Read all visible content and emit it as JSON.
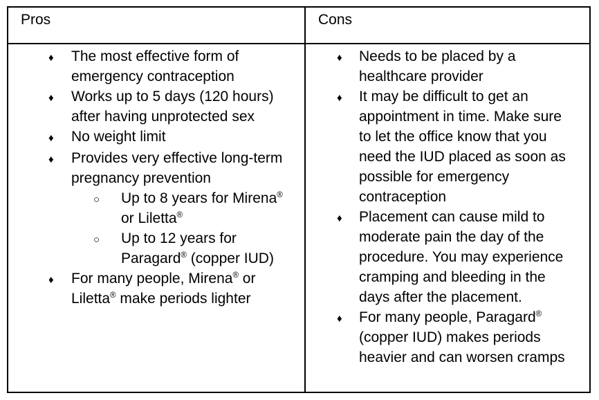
{
  "bullets": {
    "diamond": "♦",
    "circle": "○"
  },
  "table": {
    "pros": {
      "header": "Pros",
      "items": [
        {
          "text": "The most effective form of emergency contraception"
        },
        {
          "text": "Works up to 5 days (120 hours) after having unprotected sex"
        },
        {
          "text": "No weight limit"
        },
        {
          "text": "Provides very effective long-term pregnancy prevention",
          "subitems": [
            "Up to 8 years for Mirena® or Liletta®",
            "Up to 12 years for Paragard® (copper IUD)"
          ]
        },
        {
          "text": "For many people, Mirena® or Liletta® make periods lighter"
        }
      ]
    },
    "cons": {
      "header": "Cons",
      "items": [
        {
          "text": "Needs to be placed by a healthcare provider"
        },
        {
          "text": "It may be difficult to get an appointment in time. Make sure to let the office know that you need the IUD placed as soon as possible for emergency contraception"
        },
        {
          "text": "Placement can cause mild to moderate pain the day of the procedure. You may experience cramping and bleeding in the days after the placement."
        },
        {
          "text": "For many people, Paragard® (copper IUD) makes periods heavier and can worsen cramps"
        }
      ]
    }
  }
}
